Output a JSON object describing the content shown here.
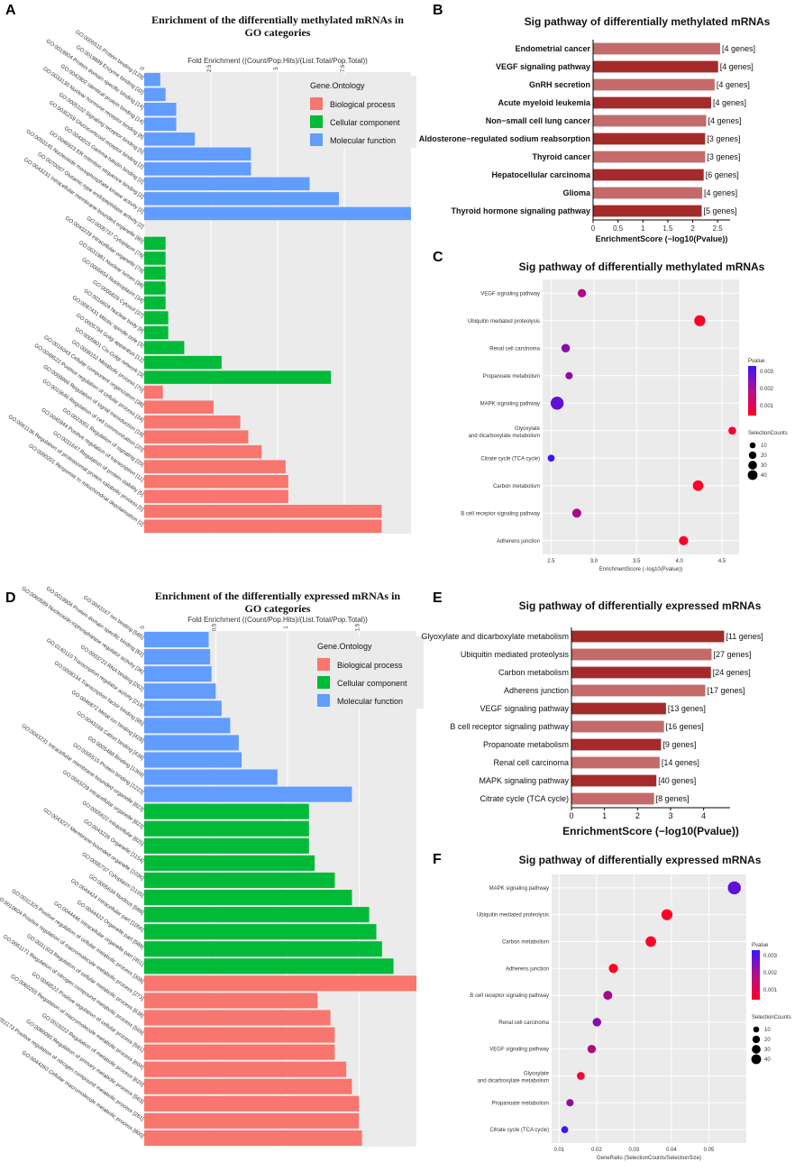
{
  "chart_data": [
    {
      "panel": "A",
      "type": "bar",
      "orientation": "horizontal",
      "title": "Enrichment of the differentially methylated mRNAs in GO categories",
      "axis_label": "Fold Enrichment ((Count/Pop.Hits)/(List.Total/Pop.Total))",
      "xlim": [
        0,
        10
      ],
      "ticks": [
        0,
        2.5,
        5,
        7.5
      ],
      "legend": {
        "title": "Gene.Ontology",
        "items": [
          {
            "name": "Biological process",
            "color": "#f8766d"
          },
          {
            "name": "Cellular component",
            "color": "#00ba38"
          },
          {
            "name": "Molecular function",
            "color": "#619cff"
          }
        ]
      },
      "categories": [
        "GO:0005515 Protein binding [129]",
        "GO:0019899 Enzyme binding [32]",
        "GO:0019904 Protein domain specific binding [14]",
        "GO:0042802 Identical protein binding [14]",
        "GO:0033130 Nuclear hormone receptor binding [8]",
        "GO:0005102 Signaling receptor binding [5]",
        "GO:0035259 Glucocorticoid receptor binding [2]",
        "GO:0043015 Gamma-tubulin binding [2]",
        "GO:0046923 ER retention sequence binding [2]",
        "GO:0050145 Nucleoside monophosphate kinase activity [2]",
        "GO:0070007 Glutamic-type endopeptidase activity [2]",
        "GO:0043231 Intracellular membrane-bounded organelle [80]",
        "GO:0005737 Cytoplasm [78]",
        "GO:0043229 Intracellular organelle [79]",
        "GO:0031981 Nuclear lumen [38]",
        "GO:0005654 Nucleoplasm [34]",
        "GO:0005829 Cytosol [37]",
        "GO:0016604 Nuclear body [9]",
        "GO:0097431 Mitotic spindle pole [3]",
        "GO:0005794 Golgi apparatus [12]",
        "GO:0005801 Cis-Golgi network [3]",
        "GO:0008152 Metabolic process [70]",
        "GO:0016043 Cellular component organization [38]",
        "GO:0048522 Positive regulation of cellular process [34]",
        "GO:0009966 Regulation of signal transduction [19]",
        "GO:0010646 Regulation of cell communication [20]",
        "GO:0023051 Regulation of signaling [20]",
        "GO:0045944 Positive regulation of transcription [11]",
        "GO:0031647 Regulation of protein stability [5]",
        "GO:0061136 Regulation of proteasomal protein catabolic process [5]",
        "GO:0090201 Response to mitochondrial depolarisation [2]"
      ],
      "series": [
        "mf",
        "mf",
        "mf",
        "mf",
        "mf",
        "mf",
        "mf",
        "mf",
        "mf",
        "mf",
        "mf",
        "cc",
        "cc",
        "cc",
        "cc",
        "cc",
        "cc",
        "cc",
        "cc",
        "cc",
        "cc",
        "bp",
        "bp",
        "bp",
        "bp",
        "bp",
        "bp",
        "bp",
        "bp",
        "bp",
        "bp"
      ],
      "values": [
        0.6,
        0.8,
        1.2,
        1.2,
        1.9,
        4.0,
        4.0,
        6.2,
        7.3,
        10.3,
        0,
        0.8,
        0.8,
        0.8,
        0.8,
        0.8,
        0.9,
        0.9,
        1.5,
        2.9,
        7.0,
        0.7,
        2.6,
        3.6,
        3.9,
        4.4,
        5.3,
        5.4,
        5.4,
        8.9,
        8.9
      ]
    },
    {
      "panel": "B",
      "type": "bar",
      "orientation": "horizontal",
      "title": "Sig pathway of differentially methylated mRNAs",
      "xlabel": "EnrichmentScore (−log10(Pvalue))",
      "xlim": [
        0,
        2.75
      ],
      "ticks": [
        0,
        0.5,
        1,
        1.5,
        2,
        2.5
      ],
      "categories": [
        "Endometrial cancer",
        "VEGF signaling pathway",
        "GnRH secretion",
        "Acute myeloid leukemia",
        "Non−small cell lung cancer",
        "Aldosterone−regulated sodium reabsorption",
        "Thyroid cancer",
        "Hepatocellular carcinoma",
        "Glioma",
        "Thyroid hormone signaling pathway"
      ],
      "values": [
        2.55,
        2.51,
        2.44,
        2.37,
        2.27,
        2.25,
        2.25,
        2.22,
        2.19,
        2.18
      ],
      "annotations": [
        "[4 genes]",
        "[4 genes]",
        "[4 genes]",
        "[4 genes]",
        "[4 genes]",
        "[3 genes]",
        "[3 genes]",
        "[6 genes]",
        "[4 genes]",
        "[5 genes]"
      ]
    },
    {
      "panel": "C",
      "type": "scatter",
      "title": "Sig pathway of differentially methylated mRNAs",
      "xlabel": "EnrichmentScore (−log10(Pvalue))",
      "xlim": [
        2.4,
        4.7
      ],
      "ticks": [
        2.5,
        3.0,
        3.5,
        4.0,
        4.5
      ],
      "tick_labels": [
        "2.5",
        "3.0",
        "3.5",
        "4.0",
        "4.5"
      ],
      "categories": [
        "VEGF signaling pathway",
        "Ubiquitin mediated proteolysis",
        "Renal cell carcinoma",
        "Propanoate metabolism",
        "MAPK signaling pathway",
        "Glyoxylate and dicarboxylate metabolism",
        "Citrate cycle (TCA cycle)",
        "Carbon metabolism",
        "B cell receptor signaling pathway",
        "Adherens junction"
      ],
      "x": [
        2.86,
        4.24,
        2.67,
        2.71,
        2.57,
        4.62,
        2.5,
        4.22,
        2.8,
        4.05
      ],
      "counts": [
        13,
        27,
        14,
        9,
        40,
        11,
        8,
        24,
        16,
        17
      ],
      "pvalue": [
        0.0014,
        0.0001,
        0.0021,
        0.0019,
        0.0027,
        0.0002,
        0.0033,
        0.0001,
        0.0016,
        0.0001
      ],
      "color_legend": {
        "title": "Pvalue",
        "ticks": [
          "0.003",
          "0.002",
          "0.001"
        ]
      },
      "size_legend": {
        "title": "SelectionCounts",
        "ticks": [
          "10",
          "20",
          "30",
          "40"
        ]
      }
    },
    {
      "panel": "D",
      "type": "bar",
      "orientation": "horizontal",
      "title": "Enrichment of the differentially expressed mRNAs in GO categories",
      "axis_label": "Fold Enrichment ((Count/Pop.Hits)/(List.Total/Pop.Total))",
      "xlim": [
        0,
        1.9
      ],
      "ticks": [
        0,
        0.5,
        1,
        1.5
      ],
      "legend": {
        "title": "Gene.Ontology",
        "items": [
          {
            "name": "Biological process",
            "color": "#f8766d"
          },
          {
            "name": "Cellular component",
            "color": "#00ba38"
          },
          {
            "name": "Molecular function",
            "color": "#619cff"
          }
        ]
      },
      "categories": [
        "GO:0043167 Ion binding [585]",
        "GO:0019904 Protein domain specific binding [82]",
        "GO:0060589 Nucleoside-triphosphatase regulator activity [36]",
        "GO:0003723 RNA binding [262]",
        "GO:0140110 Transcription regulator activity [218]",
        "GO:0008134 Transcription factor binding [85]",
        "GO:0046872 Metal ion binding [428]",
        "GO:0043169 Cation binding [438]",
        "GO:0005488 Binding [1369]",
        "GO:0005515 Protein binding [1223]",
        "GO:0043231 Intracellular membrane-bounded organelle [823]",
        "GO:0043229 Intracellular organelle [823]",
        "GO:0005622 Intracellular [825]",
        "GO:0043226 Organelle [1154]",
        "GO:0043227 Membrane-bounded organelle [1036]",
        "GO:0005737 Cytoplasm [1105]",
        "GO:0005634 Nucleus [588]",
        "GO:0044424 Intracellular part [1056]",
        "GO:0044422 Organelle part [589]",
        "GO:0044446 Intracellular organelle part [451]",
        "GO:0031325 Positive regulation of cellular metabolic process [308]",
        "GO:0010604 Positive regulation of macromolecule metabolic process [273]",
        "GO:0031323 Regulation of cellular metabolic process [638]",
        "GO:0051171 Regulation of nitrogen compound metabolic process [569]",
        "GO:0048522 Positive regulation of cellular process [581]",
        "GO:0060255 Regulation of macromolecule metabolic process [604]",
        "GO:0019222 Regulation of metabolic process [620]",
        "GO:0080090 Regulation of primary metabolic process [563]",
        "GO:0051173 Positive regulation of nitrogen compound metabolic process [281]",
        "GO:0044260 Cellular macromolecule metabolic process [800]"
      ],
      "series": [
        "mf",
        "mf",
        "mf",
        "mf",
        "mf",
        "mf",
        "mf",
        "mf",
        "mf",
        "mf",
        "cc",
        "cc",
        "cc",
        "cc",
        "cc",
        "cc",
        "cc",
        "cc",
        "cc",
        "cc",
        "bp",
        "bp",
        "bp",
        "bp",
        "bp",
        "bp",
        "bp",
        "bp",
        "bp",
        "bp"
      ],
      "values": [
        0.45,
        0.46,
        0.47,
        0.5,
        0.54,
        0.6,
        0.66,
        0.68,
        0.93,
        1.45,
        1.15,
        1.15,
        1.15,
        1.19,
        1.33,
        1.45,
        1.57,
        1.62,
        1.66,
        1.74,
        1.9,
        1.21,
        1.3,
        1.33,
        1.33,
        1.41,
        1.45,
        1.5,
        1.5,
        1.52
      ],
      "note": "values read as relative bar lengths in axis units"
    },
    {
      "panel": "E",
      "type": "bar",
      "orientation": "horizontal",
      "title": "Sig pathway of differentially expressed mRNAs",
      "xlabel": "EnrichmentScore (−log10(Pvalue))",
      "xlim": [
        0,
        4.8
      ],
      "ticks": [
        0,
        1,
        2,
        3,
        4
      ],
      "categories": [
        "Glyoxylate and dicarboxylate metabolism",
        "Ubiquitin mediated proteolysis",
        "Carbon metabolism",
        "Adherens junction",
        "VEGF signaling pathway",
        "B cell receptor signaling pathway",
        "Propanoate metabolism",
        "Renal cell carcinoma",
        "MAPK signaling pathway",
        "Citrate cycle (TCA cycle)"
      ],
      "values": [
        4.62,
        4.24,
        4.22,
        4.05,
        2.86,
        2.8,
        2.71,
        2.67,
        2.57,
        2.5
      ],
      "annotations": [
        "[11 genes]",
        "[27 genes]",
        "[24 genes]",
        "[17 genes]",
        "[13 genes]",
        "[16 genes]",
        "[9 genes]",
        "[14 genes]",
        "[40 genes]",
        "[8 genes]"
      ]
    },
    {
      "panel": "F",
      "type": "scatter",
      "title": "Sig pathway of differentially expressed mRNAs",
      "xlabel": "GeneRatio (SelectionCounts/SelectionSize)",
      "xlim": [
        0.008,
        0.06
      ],
      "ticks": [
        0.01,
        0.02,
        0.03,
        0.04,
        0.05
      ],
      "tick_labels": [
        "0.01",
        "0.02",
        "0.03",
        "0.04",
        "0.05"
      ],
      "categories": [
        "MAPK signaling pathway",
        "Ubiquitin mediated proteolysis",
        "Carbon metabolism",
        "Adherens junction",
        "B cell receptor signaling pathway",
        "Renal cell carcinoma",
        "VEGF signaling pathway",
        "Glyoxylate\nand dicarboxylate metabolism",
        "Propanoate metabolism",
        "Citrate cycle (TCA cycle)"
      ],
      "x": [
        0.0568,
        0.0388,
        0.0345,
        0.0245,
        0.023,
        0.0201,
        0.0187,
        0.0158,
        0.0129,
        0.0115
      ],
      "counts": [
        40,
        27,
        24,
        17,
        16,
        14,
        13,
        11,
        9,
        8
      ],
      "pvalue": [
        0.0027,
        0.0001,
        0.0001,
        0.0001,
        0.0016,
        0.0021,
        0.0014,
        0.0002,
        0.0019,
        0.0033
      ],
      "color_legend": {
        "title": "Pvalue",
        "ticks": [
          "0.003",
          "0.002",
          "0.001"
        ]
      },
      "size_legend": {
        "title": "SelectionCounts",
        "ticks": [
          "10",
          "20",
          "30",
          "40"
        ]
      }
    }
  ],
  "panel_letters": [
    "A",
    "B",
    "C",
    "D",
    "E",
    "F"
  ],
  "colors": {
    "bp": "#f8766d",
    "cc": "#00ba38",
    "mf": "#619cff",
    "bar_dark": "#a52a2a",
    "bar_light": "#c46a6a",
    "panel_bg": "#ebebeb"
  }
}
